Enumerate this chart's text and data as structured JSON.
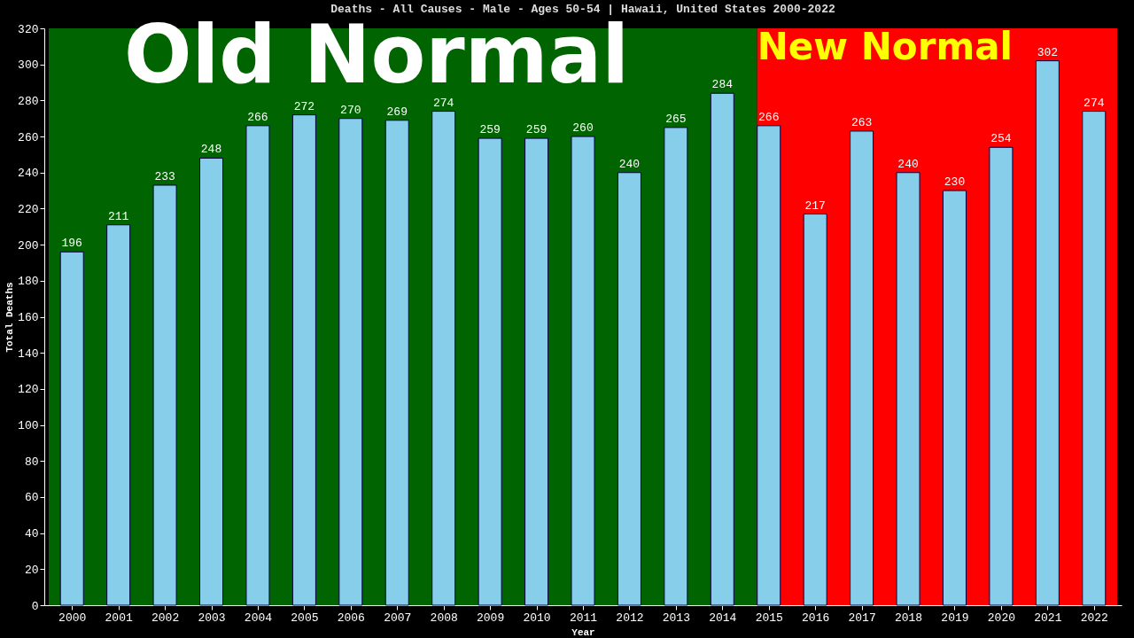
{
  "chart_data": {
    "type": "bar",
    "title": "Deaths - All Causes - Male - Ages 50-54 | Hawaii, United States 2000-2022",
    "xlabel": "Year",
    "ylabel": "Total Deaths",
    "x": [
      2000,
      2001,
      2002,
      2003,
      2004,
      2005,
      2006,
      2007,
      2008,
      2009,
      2010,
      2011,
      2012,
      2013,
      2014,
      2015,
      2016,
      2017,
      2018,
      2019,
      2020,
      2021,
      2022
    ],
    "values": [
      196,
      211,
      233,
      248,
      266,
      272,
      270,
      269,
      274,
      259,
      259,
      260,
      240,
      265,
      284,
      266,
      217,
      263,
      240,
      230,
      254,
      302,
      274
    ],
    "color": "#87ceeb",
    "xlim": [
      1999.5,
      2022.5
    ],
    "xticks": [
      2000,
      2001,
      2002,
      2003,
      2004,
      2005,
      2006,
      2007,
      2008,
      2009,
      2010,
      2011,
      2012,
      2013,
      2014,
      2015,
      2016,
      2017,
      2018,
      2019,
      2020,
      2021,
      2022
    ],
    "ylim": [
      0,
      320
    ],
    "yticks": [
      0,
      20,
      40,
      60,
      80,
      100,
      120,
      140,
      160,
      180,
      200,
      220,
      240,
      260,
      280,
      300,
      320
    ],
    "bands": [
      {
        "axis": "x",
        "from": 1999.5,
        "to": 2014.75,
        "label": "Old Normal",
        "color": "#006400"
      },
      {
        "axis": "x",
        "from": 2014.75,
        "to": 2022.5,
        "label": "New Normal",
        "color": "#ff0000"
      }
    ],
    "data_labels": true,
    "grid": false
  }
}
